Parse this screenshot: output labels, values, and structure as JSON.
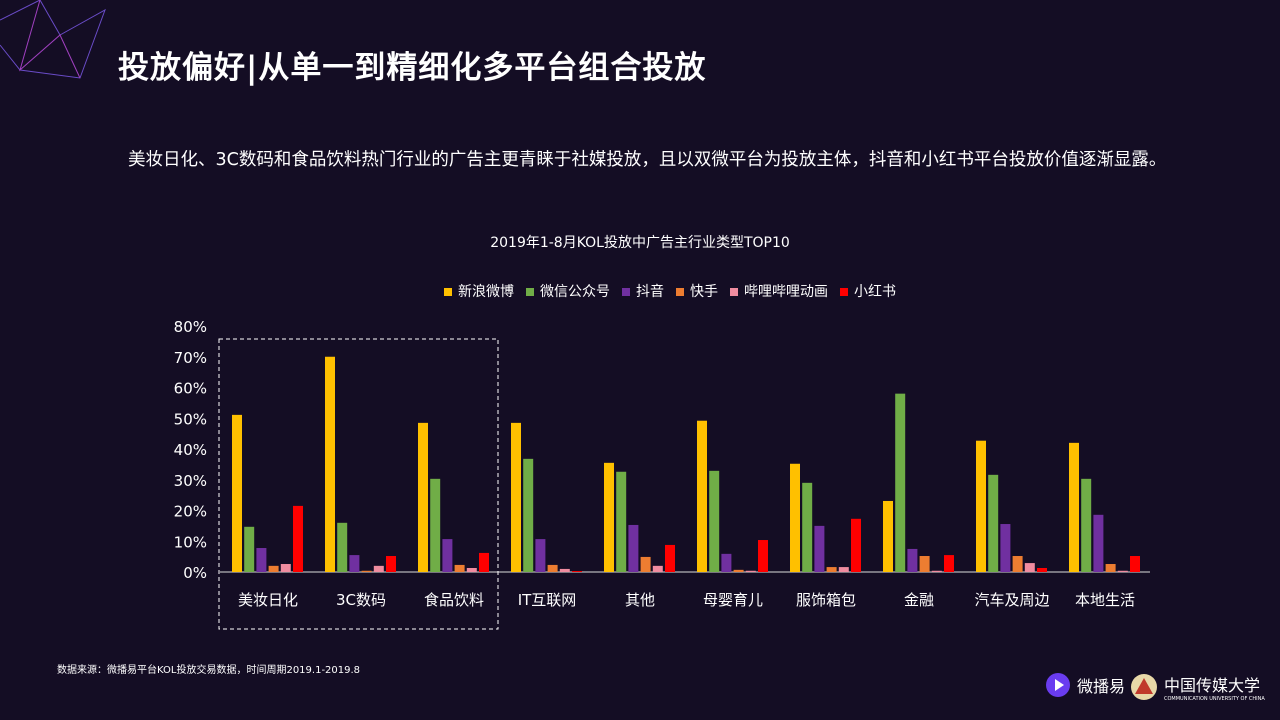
{
  "title": "投放偏好|从单一到精细化多平台组合投放",
  "description": "美妆日化、3C数码和食品饮料热门行业的广告主更青睐于社媒投放，且以双微平台为投放主体，抖音和小红书平台投放价值逐渐显露。",
  "source": "数据来源：微播易平台KOL投放交易数据，时间周期2019.1-2019.8",
  "logos": {
    "brand": "微播易",
    "university": "中国传媒大学",
    "university_en": "COMMUNICATION UNIVERSITY OF CHINA"
  },
  "chart_data": {
    "type": "bar",
    "title": "2019年1-8月KOL投放中广告主行业类型TOP10",
    "categories": [
      "美妆日化",
      "3C数码",
      "食品饮料",
      "IT互联网",
      "其他",
      "母婴育儿",
      "服饰箱包",
      "金融",
      "汽车及周边",
      "本地生活"
    ],
    "ylim": [
      0,
      80
    ],
    "yticks": [
      "0%",
      "10%",
      "20%",
      "30%",
      "40%",
      "50%",
      "60%",
      "70%",
      "80%"
    ],
    "grid": false,
    "legend": "top",
    "highlight": [
      "美妆日化",
      "3C数码",
      "食品饮料"
    ],
    "series": [
      {
        "name": "新浪微博",
        "color": "#ffc000",
        "values": [
          51.1,
          70,
          48.5,
          48.5,
          35.5,
          49.2,
          35.2,
          23.1,
          42.7,
          42
        ]
      },
      {
        "name": "微信公众号",
        "color": "#70ad47",
        "values": [
          14.7,
          16,
          30.3,
          36.8,
          32.6,
          32.9,
          29,
          58,
          31.6,
          30.3
        ]
      },
      {
        "name": "抖音",
        "color": "#7030a0",
        "values": [
          7.8,
          5.5,
          10.7,
          10.7,
          15.3,
          5.9,
          15,
          7.5,
          15.6,
          18.6
        ]
      },
      {
        "name": "快手",
        "color": "#ed7d31",
        "values": [
          2,
          0.4,
          2.3,
          2.3,
          4.9,
          0.7,
          1.6,
          5.2,
          5.2,
          2.6
        ]
      },
      {
        "name": "哔哩哔哩动画",
        "color": "#f08ca0",
        "values": [
          2.6,
          2,
          1.3,
          1,
          2,
          0.4,
          1.6,
          0.4,
          2.9,
          0.4
        ]
      },
      {
        "name": "小红书",
        "color": "#ff0000",
        "values": [
          21.5,
          5.2,
          6.2,
          0.3,
          8.8,
          10.4,
          17.3,
          5.5,
          1.3,
          5.2
        ]
      }
    ]
  }
}
